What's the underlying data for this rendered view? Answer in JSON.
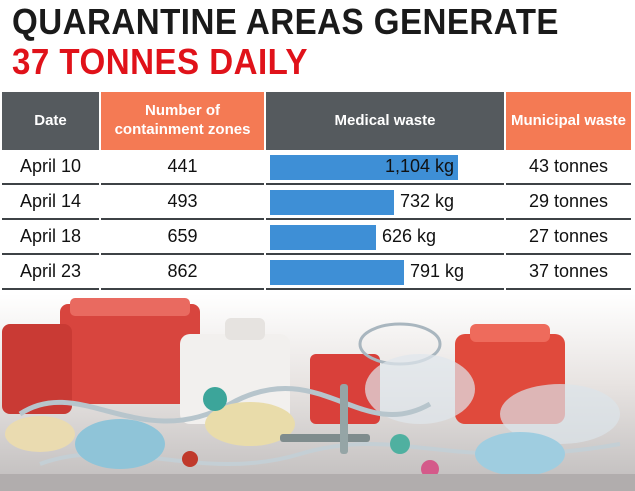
{
  "headline": {
    "line1": "QUARANTINE AREAS GENERATE",
    "line2": "37 TONNES DAILY"
  },
  "headers": {
    "date": "Date",
    "zones": "Number of containment zones",
    "medical": "Medical waste",
    "municipal": "Municipal waste"
  },
  "rows": [
    {
      "date": "April 10",
      "zones": "441",
      "medical": "1,104 kg",
      "municipal": "43 tonnes"
    },
    {
      "date": "April 14",
      "zones": "493",
      "medical": "732 kg",
      "municipal": "29 tonnes"
    },
    {
      "date": "April 18",
      "zones": "659",
      "medical": "626 kg",
      "municipal": "27 tonnes"
    },
    {
      "date": "April 23",
      "zones": "862",
      "medical": "791 kg",
      "municipal": "37 tonnes"
    }
  ],
  "colors": {
    "header_dark": "#555a5e",
    "header_accent": "#f47a54",
    "bar": "#3e8fd6",
    "headline_red": "#e0121a"
  },
  "chart_data": {
    "type": "bar",
    "categories": [
      "April 10",
      "April 14",
      "April 18",
      "April 23"
    ],
    "values": [
      1104,
      732,
      626,
      791
    ],
    "ylabel": "Medical waste",
    "unit": "kg",
    "ylim": [
      0,
      1200
    ]
  }
}
